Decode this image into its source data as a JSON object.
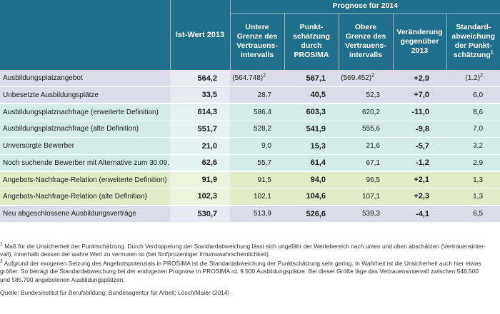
{
  "header": {
    "ist_wert": "Ist-Wert 2013",
    "prognose": "Prognose für 2014",
    "columns": [
      [
        "Untere",
        "Grenze des",
        "Vertrauens-",
        "intervalls"
      ],
      [
        "Punkt-",
        "schätzung",
        "durch",
        "PROSIMA"
      ],
      [
        "Obere",
        "Grenze des",
        "Vertrauens-",
        "intervalls"
      ],
      [
        "Veränderung",
        "gegenüber",
        "2013"
      ],
      [
        "Standard-",
        "abweichung",
        "der Punkt-",
        "schätzung"
      ]
    ],
    "col_sup": "1"
  },
  "rows": [
    {
      "label": "Ausbildungsplatzangebot",
      "ist": "564,2",
      "untere": "(564.748)",
      "untere_sup": "2",
      "punkt": "567,1",
      "obere": "(569.452)",
      "obere_sup": "2",
      "veraenderung": "+2,9",
      "std": "(1.2)",
      "std_sup": "2"
    },
    {
      "label": "Unbesetzte Ausbildungsplätze",
      "ist": "33,5",
      "untere": "28,7",
      "punkt": "40,5",
      "obere": "52,3",
      "veraenderung": "+7,0",
      "std": "6,0"
    },
    {
      "label": "Ausbildungsplatznachfrage (erweiterte Definition)",
      "ist": "614,3",
      "untere": "586,4",
      "punkt": "603,3",
      "obere": "620,2",
      "veraenderung": "-11,0",
      "std": "8,6"
    },
    {
      "label": "Ausbildungsplatznachfrage (alte Definition)",
      "ist": "551,7",
      "untere": "528,2",
      "punkt": "541,9",
      "obere": "555,6",
      "veraenderung": "-9,8",
      "std": "7,0"
    },
    {
      "label": "Unversorgte Bewerber",
      "ist": "21,0",
      "untere": "9,0",
      "punkt": "15,3",
      "obere": "21,6",
      "veraenderung": "-5,7",
      "std": "3,2"
    },
    {
      "label": "Noch suchende Bewerber mit Alternative zum 30.09.",
      "ist": "62,6",
      "untere": "55,7",
      "punkt": "61,4",
      "obere": "67,1",
      "veraenderung": "-1,2",
      "std": "2,9"
    },
    {
      "label": "Angebots-Nachfrage-Relation (erweiterte Definition)",
      "ist": "91,9",
      "untere": "91,5",
      "punkt": "94,0",
      "obere": "96,5",
      "veraenderung": "+2,1",
      "std": "1,3"
    },
    {
      "label": "Angebots-Nachfrage-Relation (alte Definition)",
      "ist": "102,3",
      "untere": "102,1",
      "punkt": "104,6",
      "obere": "107,1",
      "veraenderung": "+2,3",
      "std": "1,3"
    },
    {
      "label": "Neu abgeschlossene Ausbildungsverträge",
      "ist": "530,7",
      "untere": "513,9",
      "punkt": "526,6",
      "obere": "539,3",
      "veraenderung": "-4,1",
      "std": "6,5"
    }
  ],
  "footnotes": {
    "n1_mark": "1",
    "n1_line1": " Maß für die Unsicherheit der Punktschätzung. Durch Verdoppelung der Standardabweichung lässt sich ungefähr der Wertebereich nach unten und oben abschätzen (Vertrauensinter-",
    "n1_line2": "vall), innerhalb dessen der wahre Wert zu vermuten ist (bei fünfprozentiger Irrtumswahrscheinlichkeit).",
    "n2_mark": "2",
    "n2_line1": " Aufgrund der exogenen Setzung des Angebotspotenzials in PROSIMA ist die Standardabweichung der Punktschätzung sehr gering. In Wahrheit ist die Unsicherheit auch hier etwas",
    "n2_line2": "größer. So beträgt die Standardabweichung bei der endogenen Prognose in PROSIMA rd. 9.500 Ausbildungsplätze. Bei dieser Größe läge das Vertrauensintervall zwischen 548.500",
    "n2_line3": "und 585.700 angebotenen Ausbildungsplätzen.",
    "source": "Quelle: Bundesinstitut für Berufsbildung; Bundesagentur für Arbeit; Lösch/Maier (2014)"
  }
}
